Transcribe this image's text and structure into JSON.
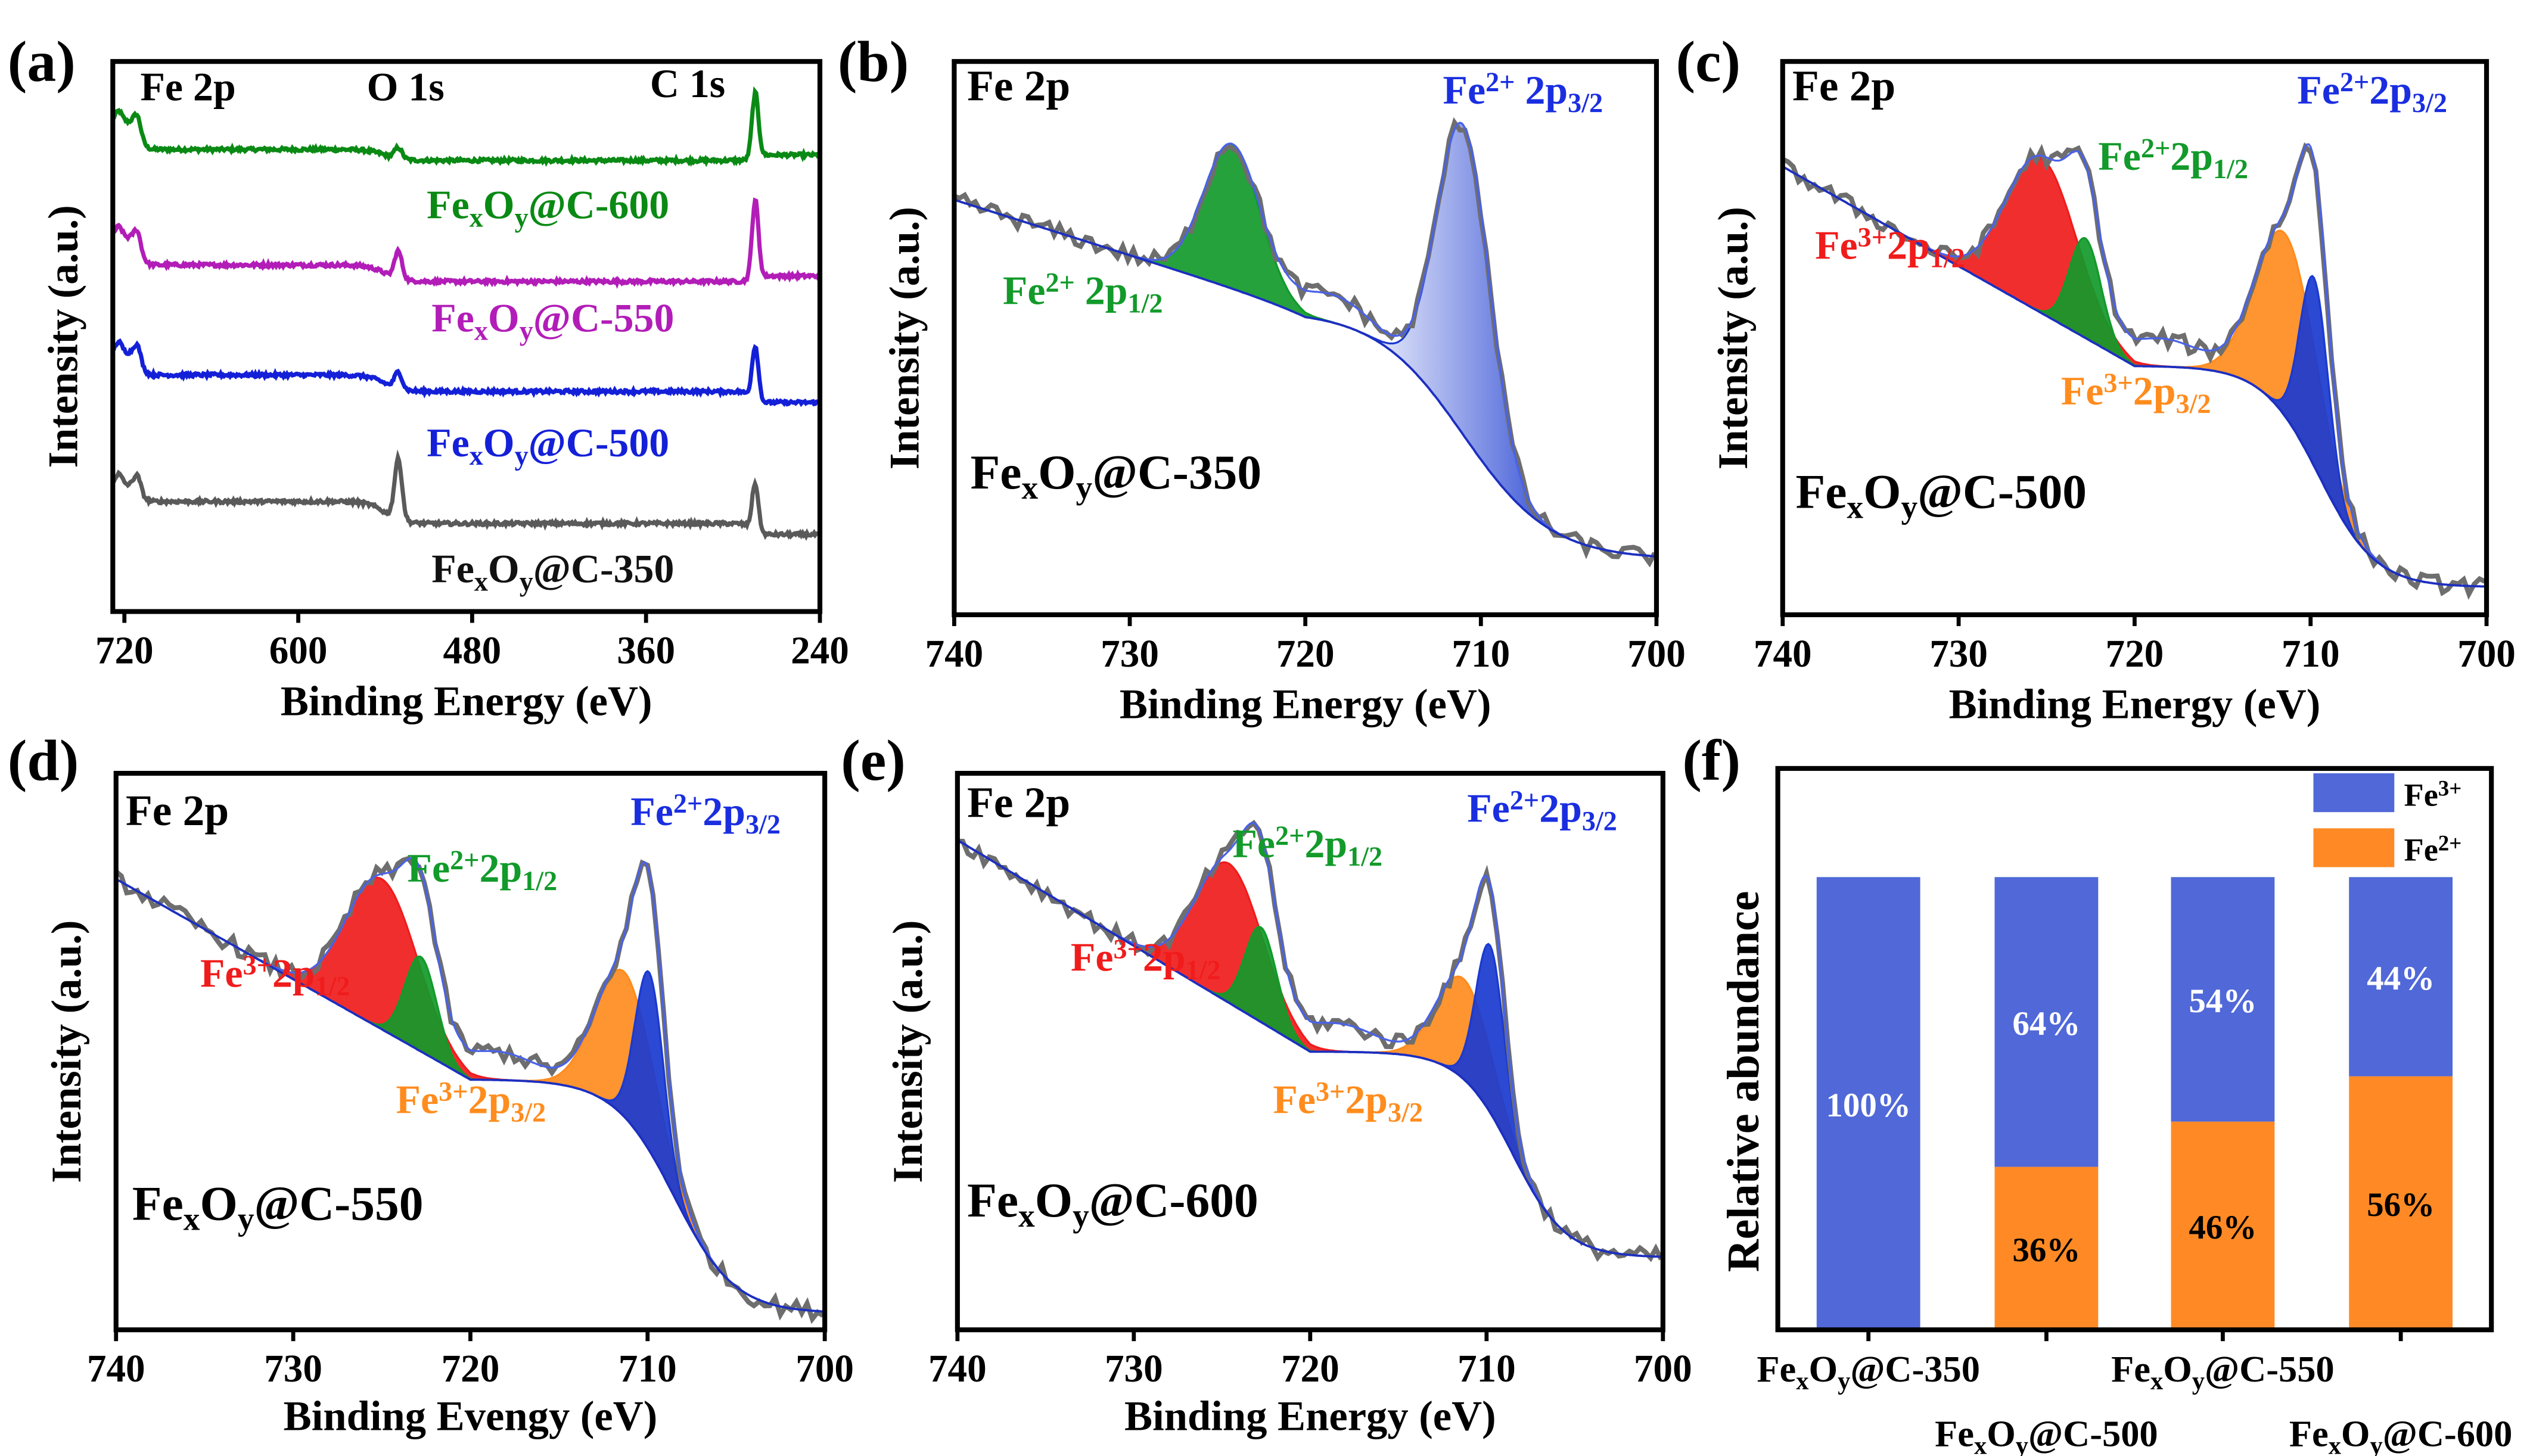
{
  "figure": {
    "panel_labels": [
      "(a)",
      "(b)",
      "(c)",
      "(d)",
      "(e)",
      "(f)"
    ]
  },
  "chart_data": [
    {
      "panel": "(a)",
      "type": "line",
      "xlabel": "Binding Energy (eV)",
      "ylabel": "Intensity (a.u.)",
      "xlim": [
        728,
        240
      ],
      "xticks": [
        "720",
        "600",
        "480",
        "360",
        "240"
      ],
      "xtick_values": [
        720,
        600,
        480,
        360,
        240
      ],
      "peak_labels": [
        "Fe 2p",
        "O 1s",
        "C 1s"
      ],
      "series": [
        {
          "name": [
            "Fe",
            "x",
            "O",
            "y",
            "@C-600"
          ],
          "color": "#0a8a14",
          "left": 0.89,
          "mid": 0.84,
          "after_o": 0.82,
          "o_peak": 0.86,
          "c_peak": 0.935,
          "end": 0.83
        },
        {
          "name": [
            "Fe",
            "x",
            "O",
            "y",
            "@C-550"
          ],
          "color": "#b21db8",
          "left": 0.68,
          "mid": 0.63,
          "after_o": 0.6,
          "o_peak": 0.68,
          "c_peak": 0.74,
          "end": 0.61
        },
        {
          "name": [
            "Fe",
            "x",
            "O",
            "y",
            "@C-500"
          ],
          "color": "#1420d8",
          "left": 0.47,
          "mid": 0.43,
          "after_o": 0.4,
          "o_peak": 0.46,
          "c_peak": 0.5,
          "end": 0.38
        },
        {
          "name": [
            "Fe",
            "x",
            "O",
            "y",
            "@C-350"
          ],
          "color": "#5a5a5a",
          "left": 0.23,
          "mid": 0.2,
          "after_o": 0.16,
          "o_peak": 0.31,
          "c_peak": 0.25,
          "end": 0.14
        }
      ]
    },
    {
      "panel": "(b)",
      "type": "line",
      "title": "Fe 2p",
      "sample": [
        "Fe",
        "x",
        "O",
        "y",
        "@C-350"
      ],
      "xlabel": "Binding Energy (eV)",
      "ylabel": "Intensity (a.u.)",
      "xlim": [
        740,
        700
      ],
      "xticks": [
        "740",
        "730",
        "720",
        "710",
        "700"
      ],
      "xtick_values": [
        740,
        730,
        720,
        710,
        700
      ],
      "background": {
        "low": 0.1,
        "mid": 0.55,
        "center": 711,
        "width": 2.5,
        "slope": 0.01
      },
      "peaks": [
        {
          "label": [
            "Fe",
            "2+",
            " 2p",
            "3/2"
          ],
          "center": 711,
          "height": 0.56,
          "sigma": 1.5,
          "color": "#1a3ad0",
          "gradient": true
        },
        {
          "label": [
            "Fe",
            "2+",
            " 2p",
            "1/2"
          ],
          "center": 724.2,
          "height": 0.26,
          "sigma": 1.6,
          "color": "#129a2a"
        }
      ]
    },
    {
      "panel": "(c)",
      "type": "line",
      "title": "Fe 2p",
      "sample": [
        "Fe",
        "x",
        "O",
        "y",
        "@C-500"
      ],
      "xlabel": "Binding Energy (eV)",
      "ylabel": "Intensity (a.u.)",
      "xlim": [
        740,
        700
      ],
      "xticks": [
        "740",
        "730",
        "720",
        "710",
        "700"
      ],
      "xtick_values": [
        740,
        730,
        720,
        710,
        700
      ],
      "background": {
        "low": 0.05,
        "mid": 0.45,
        "center": 709.5,
        "width": 1.6,
        "slope": 0.018
      },
      "peaks": [
        {
          "label": [
            "Fe",
            "2+",
            "2p",
            "3/2"
          ],
          "center": 709.8,
          "height": 0.34,
          "sigma": 0.8,
          "color": "#1a3ad0"
        },
        {
          "label": [
            "Fe",
            "2+",
            "2p",
            "1/2"
          ],
          "center": 722.8,
          "height": 0.18,
          "sigma": 0.9,
          "color": "#129a2a"
        },
        {
          "label": [
            "Fe",
            "3+",
            "2p",
            "1/2"
          ],
          "center": 725.3,
          "height": 0.28,
          "sigma": 2.0,
          "color": "#f01c1c"
        },
        {
          "label": [
            "Fe",
            "3+",
            "2p",
            "3/2"
          ],
          "center": 711.4,
          "height": 0.33,
          "sigma": 1.7,
          "color": "#ff8c1e"
        }
      ]
    },
    {
      "panel": "(d)",
      "type": "line",
      "title": "Fe 2p",
      "sample": [
        "Fe",
        "x",
        "O",
        "y",
        "@C-550"
      ],
      "xlabel": "Binding Evengy (eV)",
      "ylabel": "Intensity (a.u.)",
      "xlim": [
        740,
        700
      ],
      "xticks": [
        "740",
        "730",
        "720",
        "710",
        "700"
      ],
      "xtick_values": [
        740,
        730,
        720,
        710,
        700
      ],
      "background": {
        "low": 0.03,
        "mid": 0.45,
        "center": 708.5,
        "width": 1.7,
        "slope": 0.018
      },
      "peaks": [
        {
          "label": [
            "Fe",
            "2+",
            "2p",
            "3/2"
          ],
          "center": 709.9,
          "height": 0.32,
          "sigma": 0.8,
          "color": "#1a3ad0"
        },
        {
          "label": [
            "Fe",
            "2+",
            "2p",
            "1/2"
          ],
          "center": 722.8,
          "height": 0.17,
          "sigma": 0.9,
          "color": "#129a2a"
        },
        {
          "label": [
            "Fe",
            "3+",
            "2p",
            "1/2"
          ],
          "center": 725.0,
          "height": 0.27,
          "sigma": 2.0,
          "color": "#f01c1c"
        },
        {
          "label": [
            "Fe",
            "3+",
            "2p",
            "3/2"
          ],
          "center": 711.3,
          "height": 0.26,
          "sigma": 1.6,
          "color": "#ff8c1e"
        }
      ]
    },
    {
      "panel": "(e)",
      "type": "line",
      "title": "Fe 2p",
      "sample": [
        "Fe",
        "x",
        "O",
        "y",
        "@C-600"
      ],
      "xlabel": "Binding Energy (eV)",
      "ylabel": "Intensity (a.u.)",
      "xlim": [
        740,
        700
      ],
      "xticks": [
        "740",
        "730",
        "720",
        "710",
        "700"
      ],
      "xtick_values": [
        740,
        730,
        720,
        710,
        700
      ],
      "background": {
        "low": 0.13,
        "mid": 0.5,
        "center": 708.5,
        "width": 1.5,
        "slope": 0.019
      },
      "peaks": [
        {
          "label": [
            "Fe",
            "2+",
            "2p",
            "3/2"
          ],
          "center": 709.8,
          "height": 0.3,
          "sigma": 0.8,
          "color": "#1a3ad0"
        },
        {
          "label": [
            "Fe",
            "2+",
            "2p",
            "1/2"
          ],
          "center": 722.8,
          "height": 0.17,
          "sigma": 0.9,
          "color": "#129a2a"
        },
        {
          "label": [
            "Fe",
            "3+",
            "2p",
            "1/2"
          ],
          "center": 724.6,
          "height": 0.25,
          "sigma": 1.9,
          "color": "#f01c1c"
        },
        {
          "label": [
            "Fe",
            "3+",
            "2p",
            "3/2"
          ],
          "center": 711.3,
          "height": 0.18,
          "sigma": 1.5,
          "color": "#ff8c1e"
        }
      ]
    },
    {
      "panel": "(f)",
      "type": "bar",
      "stacked": true,
      "ylabel": "Relative abundance",
      "ylim": [
        0,
        124
      ],
      "categories": [
        [
          "Fe",
          "x",
          "O",
          "y",
          "@C-350"
        ],
        [
          "Fe",
          "x",
          "O",
          "y",
          "@C-500"
        ],
        [
          "Fe",
          "x",
          "O",
          "y",
          "@C-550"
        ],
        [
          "Fe",
          "x",
          "O",
          "y",
          "@C-600"
        ]
      ],
      "series": [
        {
          "name": [
            "Fe",
            "2+"
          ],
          "color": "#ff8a25",
          "values": [
            0,
            36,
            46,
            56
          ],
          "labels": [
            "",
            "36%",
            "46%",
            "56%"
          ],
          "label_color": "#000000"
        },
        {
          "name": [
            "Fe",
            "3+"
          ],
          "color": "#5068d8",
          "values": [
            100,
            64,
            54,
            44
          ],
          "labels": [
            "100%",
            "64%",
            "54%",
            "44%"
          ],
          "label_color": "#ffffff"
        }
      ],
      "legend": "top-right"
    }
  ]
}
